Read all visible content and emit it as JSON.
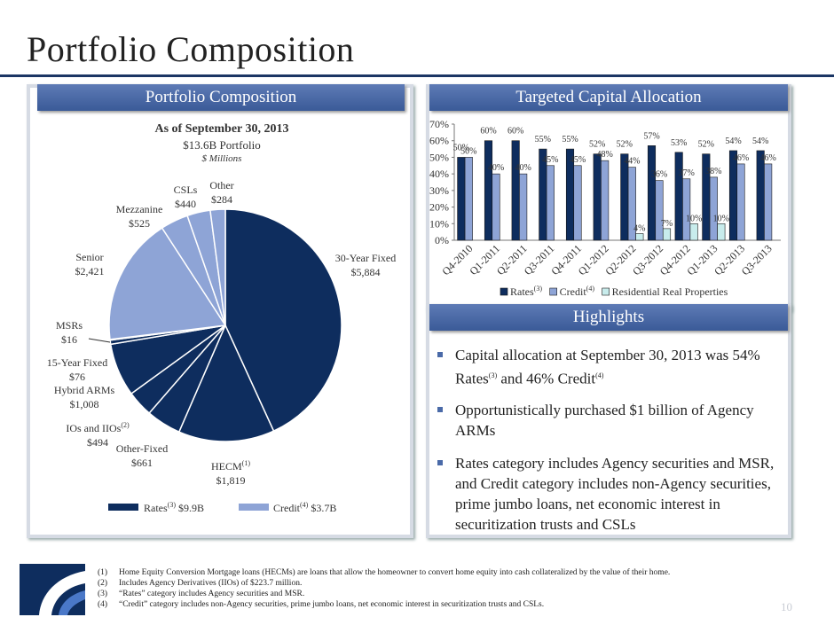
{
  "page_title": "Portfolio Composition",
  "page_number": "10",
  "left_panel": {
    "banner": "Portfolio Composition",
    "as_of": "As of September 30, 2013",
    "portfolio": "$13.6B Portfolio",
    "units": "$ Millions",
    "slices": [
      {
        "name": "30-Year Fixed",
        "value": "$5,884",
        "amount": 5884,
        "group": "rates",
        "sup": ""
      },
      {
        "name": "HECM",
        "value": "$1,819",
        "amount": 1819,
        "group": "rates",
        "sup": "(1)"
      },
      {
        "name": "Other-Fixed",
        "value": "$661",
        "amount": 661,
        "group": "rates",
        "sup": ""
      },
      {
        "name": "IOs and IIOs",
        "value": "$494",
        "amount": 494,
        "group": "rates",
        "sup": "(2)"
      },
      {
        "name": "Hybrid ARMs",
        "value": "$1,008",
        "amount": 1008,
        "group": "rates",
        "sup": ""
      },
      {
        "name": "15-Year Fixed",
        "value": "$76",
        "amount": 76,
        "group": "rates",
        "sup": ""
      },
      {
        "name": "MSRs",
        "value": "$16",
        "amount": 16,
        "group": "rates",
        "sup": ""
      },
      {
        "name": "Senior",
        "value": "$2,421",
        "amount": 2421,
        "group": "credit",
        "sup": ""
      },
      {
        "name": "Mezzanine",
        "value": "$525",
        "amount": 525,
        "group": "credit",
        "sup": ""
      },
      {
        "name": "CSLs",
        "value": "$440",
        "amount": 440,
        "group": "credit",
        "sup": ""
      },
      {
        "name": "Other",
        "value": "$284",
        "amount": 284,
        "group": "credit",
        "sup": ""
      }
    ],
    "legend": {
      "rates_label": "Rates",
      "rates_sup": "(3)",
      "rates_value": "$9.9B",
      "credit_label": "Credit",
      "credit_sup": "(4)",
      "credit_value": "$3.7B"
    },
    "colors": {
      "rates": "#0e2d5e",
      "credit": "#8ea4d6"
    }
  },
  "right_top": {
    "banner": "Targeted Capital Allocation",
    "chart_data": {
      "type": "bar",
      "categories": [
        "Q4-2010",
        "Q1-2011",
        "Q2-2011",
        "Q3-2011",
        "Q4-2011",
        "Q1-2012",
        "Q2-2012",
        "Q3-2012",
        "Q4-2012",
        "Q1-2013",
        "Q2-2013",
        "Q3-2013"
      ],
      "series": [
        {
          "name": "Rates",
          "sup": "(3)",
          "color": "#0e2d5e",
          "values": [
            50,
            60,
            60,
            55,
            55,
            52,
            52,
            57,
            53,
            52,
            54,
            54
          ]
        },
        {
          "name": "Credit",
          "sup": "(4)",
          "color": "#8ea4d6",
          "values": [
            50,
            40,
            40,
            45,
            45,
            48,
            44,
            36,
            37,
            38,
            46,
            46
          ]
        },
        {
          "name": "Residential Real Properties",
          "sup": "",
          "color": "#c8ecec",
          "values": [
            null,
            null,
            null,
            null,
            null,
            null,
            4,
            7,
            10,
            10,
            null,
            null
          ]
        }
      ],
      "yticks": [
        "0%",
        "10%",
        "20%",
        "30%",
        "40%",
        "50%",
        "60%",
        "70%"
      ],
      "ylim": [
        0,
        70
      ],
      "legend_position": "bottom"
    }
  },
  "right_bottom": {
    "banner": "Highlights",
    "bullets": [
      {
        "parts": [
          "Capital allocation at September 30, 2013 was 54% Rates",
          "(3)",
          " and 46% Credit",
          "(4)"
        ]
      },
      {
        "parts": [
          "Opportunistically purchased $1 billion of Agency ARMs"
        ]
      },
      {
        "parts": [
          "Rates category includes Agency securities and MSR, and Credit category includes non-Agency securities, prime jumbo loans, net economic interest in securitization trusts and CSLs"
        ]
      }
    ]
  },
  "footnotes": [
    {
      "n": "(1)",
      "text": "Home Equity Conversion Mortgage loans (HECMs) are loans that allow the homeowner to convert home equity into cash collateralized by the value of their home."
    },
    {
      "n": "(2)",
      "text": "Includes Agency Derivatives (IIOs) of $223.7 million."
    },
    {
      "n": "(3)",
      "text": "“Rates” category includes Agency securities and MSR."
    },
    {
      "n": "(4)",
      "text": "“Credit” category includes non-Agency securities, prime jumbo loans, net economic interest in securitization trusts and CSLs."
    }
  ]
}
